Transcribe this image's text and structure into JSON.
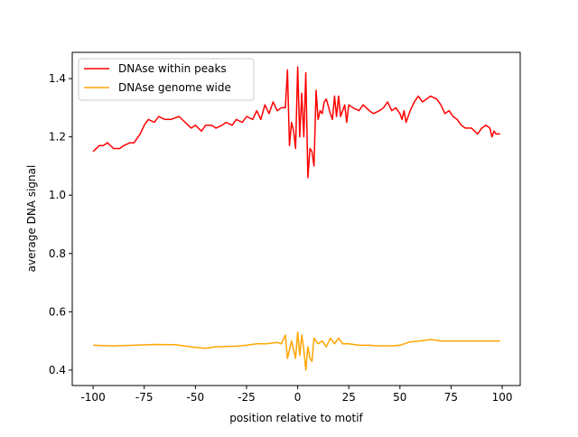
{
  "chart_data": {
    "type": "line",
    "title": "",
    "xlabel": "position relative to motif",
    "ylabel": "average DNA signal",
    "xlim": [
      -110.2,
      108.8
    ],
    "ylim": [
      0.347,
      1.49
    ],
    "xticks": [
      -100,
      -75,
      -50,
      -25,
      0,
      25,
      50,
      75,
      100
    ],
    "yticks": [
      0.4,
      0.6,
      0.8,
      1.0,
      1.2,
      1.4
    ],
    "ytick_labels": [
      "0.4",
      "0.6",
      "0.8",
      "1.0",
      "1.2",
      "1.4"
    ],
    "grid": false,
    "legend_position": "upper-left",
    "series": [
      {
        "name": "DNAse within peaks",
        "color": "#ff0000",
        "x": [
          -100,
          -97,
          -95,
          -93,
          -90,
          -87,
          -85,
          -82,
          -80,
          -77,
          -75,
          -73,
          -70,
          -68,
          -65,
          -62,
          -58,
          -55,
          -52,
          -50,
          -47,
          -45,
          -42,
          -40,
          -37,
          -35,
          -32,
          -30,
          -27,
          -25,
          -22,
          -20,
          -18,
          -16,
          -14,
          -12,
          -10,
          -8,
          -6,
          -5,
          -4,
          -3,
          -2,
          -1,
          0,
          1,
          2,
          3,
          4,
          5,
          6,
          7,
          8,
          9,
          10,
          11,
          12,
          13,
          14,
          16,
          17,
          18,
          19,
          20,
          21,
          22,
          23,
          24,
          25,
          27,
          30,
          32,
          35,
          37,
          40,
          42,
          44,
          46,
          48,
          50,
          51,
          52,
          53,
          55,
          57,
          59,
          61,
          63,
          65,
          68,
          70,
          72,
          74,
          76,
          78,
          80,
          82,
          85,
          88,
          90,
          92,
          94,
          95,
          96,
          97,
          99
        ],
        "y": [
          1.15,
          1.17,
          1.17,
          1.18,
          1.16,
          1.16,
          1.17,
          1.18,
          1.18,
          1.21,
          1.24,
          1.26,
          1.25,
          1.27,
          1.26,
          1.26,
          1.27,
          1.25,
          1.23,
          1.24,
          1.22,
          1.24,
          1.24,
          1.23,
          1.24,
          1.25,
          1.24,
          1.26,
          1.25,
          1.27,
          1.26,
          1.29,
          1.26,
          1.31,
          1.28,
          1.32,
          1.29,
          1.3,
          1.3,
          1.43,
          1.17,
          1.25,
          1.22,
          1.16,
          1.44,
          1.2,
          1.35,
          1.2,
          1.42,
          1.06,
          1.16,
          1.15,
          1.1,
          1.36,
          1.26,
          1.29,
          1.28,
          1.32,
          1.33,
          1.28,
          1.26,
          1.34,
          1.27,
          1.34,
          1.27,
          1.29,
          1.31,
          1.25,
          1.31,
          1.3,
          1.29,
          1.31,
          1.29,
          1.28,
          1.29,
          1.3,
          1.32,
          1.29,
          1.3,
          1.28,
          1.26,
          1.29,
          1.25,
          1.29,
          1.32,
          1.34,
          1.32,
          1.33,
          1.34,
          1.33,
          1.31,
          1.28,
          1.29,
          1.27,
          1.26,
          1.24,
          1.23,
          1.23,
          1.21,
          1.23,
          1.24,
          1.23,
          1.2,
          1.22,
          1.21,
          1.21
        ]
      },
      {
        "name": "DNAse genome wide",
        "color": "#ffa500",
        "x": [
          -100,
          -90,
          -80,
          -70,
          -60,
          -50,
          -45,
          -40,
          -30,
          -25,
          -20,
          -15,
          -10,
          -8,
          -6,
          -5,
          -3,
          -1,
          0,
          1,
          2,
          3,
          4,
          5,
          6,
          7,
          8,
          10,
          12,
          14,
          16,
          18,
          20,
          22,
          25,
          30,
          35,
          40,
          45,
          50,
          55,
          60,
          65,
          70,
          80,
          90,
          99
        ],
        "y": [
          0.485,
          0.483,
          0.485,
          0.488,
          0.487,
          0.478,
          0.475,
          0.48,
          0.482,
          0.485,
          0.49,
          0.49,
          0.495,
          0.49,
          0.52,
          0.44,
          0.5,
          0.44,
          0.53,
          0.45,
          0.52,
          0.47,
          0.4,
          0.48,
          0.44,
          0.43,
          0.51,
          0.49,
          0.5,
          0.48,
          0.51,
          0.49,
          0.51,
          0.49,
          0.49,
          0.485,
          0.485,
          0.483,
          0.483,
          0.485,
          0.497,
          0.5,
          0.505,
          0.5,
          0.5,
          0.5,
          0.5
        ]
      }
    ]
  }
}
